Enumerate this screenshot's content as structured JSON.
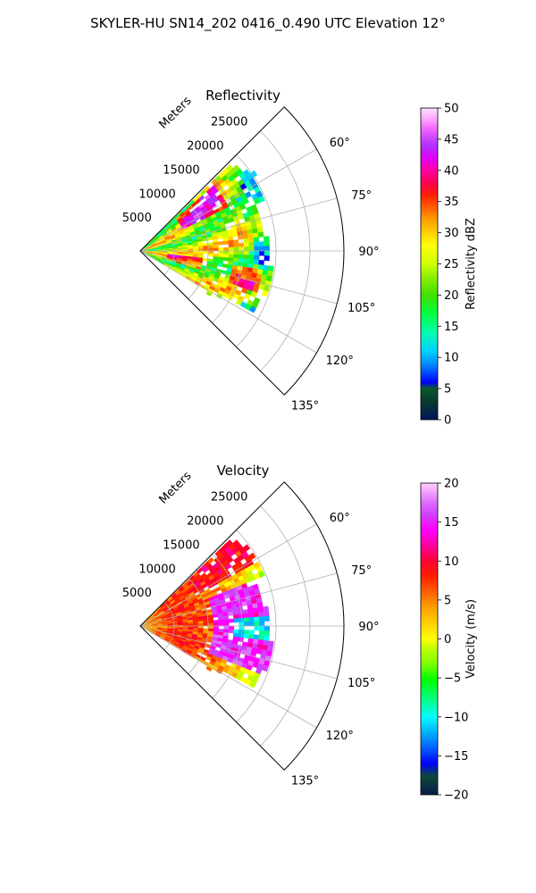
{
  "figure_title": "SKYLER-HU  SN14_202  0416_0.490 UTC Elevation 12°",
  "chart_data": [
    {
      "type": "heatmap",
      "projection": "polar sector (PPI)",
      "title": "Reflectivity",
      "radial_axis_label": "Meters",
      "radial_ticks": [
        "5000",
        "10000",
        "15000",
        "20000",
        "25000"
      ],
      "rlim": [
        0,
        30000
      ],
      "theta_ticks": [
        "60°",
        "75°",
        "90°",
        "105°",
        "120°",
        "135°"
      ],
      "thetalim": [
        45,
        135
      ],
      "grid": true,
      "colorbar": {
        "label": "Reflectivity dBZ",
        "range": [
          0,
          50
        ],
        "ticks": [
          "0",
          "5",
          "10",
          "15",
          "20",
          "25",
          "30",
          "35",
          "40",
          "45",
          "50"
        ]
      },
      "dominant_values": "echoes mostly 15–30 dBZ, cores 35–45 dBZ near 40°–60° azimuth and 100°–105° azimuth"
    },
    {
      "type": "heatmap",
      "projection": "polar sector (PPI)",
      "title": "Velocity",
      "radial_axis_label": "Meters",
      "radial_ticks": [
        "5000",
        "10000",
        "15000",
        "20000",
        "25000"
      ],
      "rlim": [
        0,
        30000
      ],
      "theta_ticks": [
        "60°",
        "75°",
        "90°",
        "105°",
        "120°",
        "135°"
      ],
      "thetalim": [
        45,
        135
      ],
      "grid": true,
      "colorbar": {
        "label": "Velocity (m/s)",
        "range": [
          -20,
          20
        ],
        "ticks": [
          "−20",
          "−15",
          "−10",
          "−5",
          "0",
          "5",
          "10",
          "15",
          " 20"
        ]
      },
      "dominant_values": "mostly 0–5 m/s near radar, outbound 10–15 m/s beyond 15000 m east, inbound −10 m/s patches near 90°"
    }
  ],
  "colors": {
    "reflectivity_scale": [
      "#05145a",
      "#0a3a2e",
      "#0b5a2a",
      "#0000ff",
      "#0090ff",
      "#00d0ff",
      "#00ffb0",
      "#00ff40",
      "#40e000",
      "#90f000",
      "#d0ff00",
      "#ffff00",
      "#ffd000",
      "#ffa000",
      "#ff6000",
      "#ff2000",
      "#ff0050",
      "#ff00a0",
      "#e000ff",
      "#b030ff",
      "#ee60ff",
      "#ffb0ff",
      "#ffe0ff"
    ],
    "velocity_scale": [
      "#0a1a4a",
      "#0a4a3a",
      "#0000ff",
      "#0060ff",
      "#00b0ff",
      "#00ffff",
      "#00ff90",
      "#00ff00",
      "#80ff00",
      "#c0ff00",
      "#ffff00",
      "#ffd000",
      "#ffa000",
      "#ff6000",
      "#ff2000",
      "#ff0030",
      "#ff00a0",
      "#ff00ff",
      "#d040ff",
      "#e070ff",
      "#f0a0ff",
      "#ffd0ff"
    ]
  }
}
